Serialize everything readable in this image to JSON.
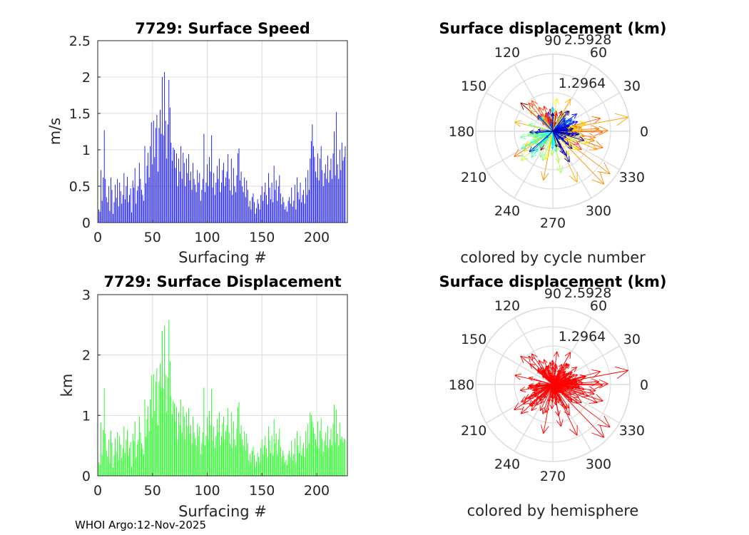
{
  "footer": "WHOI Argo:12-Nov-2025",
  "colors": {
    "speed_bar": "#0000ff",
    "displacement_bar": "#00ff00",
    "hemisphere_arrow": "#ff0000",
    "grid": "#dcdcdc",
    "axis": "#262626"
  },
  "chart_data": [
    {
      "type": "bar",
      "title": "7729: Surface Speed",
      "xlabel": "Surfacing #",
      "ylabel": "m/s",
      "xlim": [
        0,
        228
      ],
      "ylim": [
        0,
        2.5
      ],
      "xticks": [
        "0",
        "50",
        "100",
        "150",
        "200"
      ],
      "yticks": [
        "0",
        "0.5",
        "1",
        "1.5",
        "2",
        "2.5"
      ],
      "values": [
        0.18,
        0.15,
        0.72,
        0.3,
        0.62,
        1.27,
        0.6,
        0.35,
        0.28,
        0.5,
        0.16,
        0.62,
        0.45,
        0.12,
        0.28,
        0.52,
        0.34,
        0.6,
        0.22,
        0.55,
        0.43,
        0.26,
        0.38,
        0.68,
        0.32,
        0.5,
        0.63,
        0.28,
        0.38,
        0.47,
        0.14,
        0.58,
        0.48,
        0.75,
        0.26,
        0.44,
        0.5,
        0.82,
        0.6,
        0.45,
        0.38,
        0.3,
        1.05,
        0.54,
        0.78,
        0.96,
        0.62,
        1.05,
        1.38,
        0.8,
        1.4,
        0.9,
        1.3,
        1.48,
        0.7,
        1.3,
        1.55,
        1.22,
        2.0,
        1.2,
        2.07,
        1.4,
        0.88,
        1.35,
        1.96,
        1.58,
        1.1,
        0.85,
        1.03,
        1.0,
        0.75,
        0.95,
        0.5,
        0.88,
        0.7,
        1.05,
        0.6,
        0.96,
        0.82,
        0.5,
        0.88,
        0.68,
        0.94,
        0.58,
        0.7,
        0.45,
        0.82,
        0.6,
        0.52,
        0.42,
        0.72,
        0.55,
        0.68,
        0.3,
        0.45,
        0.6,
        1.22,
        0.42,
        0.55,
        0.8,
        0.5,
        0.9,
        0.7,
        1.2,
        0.48,
        0.68,
        0.38,
        0.55,
        0.78,
        0.6,
        0.88,
        0.42,
        0.55,
        0.72,
        0.82,
        0.5,
        0.62,
        0.7,
        0.94,
        0.6,
        0.44,
        0.88,
        0.38,
        0.75,
        0.5,
        0.42,
        0.65,
        0.95,
        1.02,
        0.58,
        0.7,
        0.5,
        0.42,
        0.62,
        0.35,
        0.58,
        0.45,
        0.22,
        0.3,
        0.18,
        0.35,
        0.4,
        0.28,
        0.12,
        0.2,
        0.32,
        0.26,
        0.18,
        0.38,
        0.5,
        0.3,
        0.42,
        0.55,
        0.38,
        0.25,
        0.68,
        0.48,
        0.32,
        0.55,
        0.28,
        0.78,
        0.45,
        0.58,
        0.3,
        0.5,
        0.65,
        0.4,
        0.25,
        0.35,
        0.28,
        0.18,
        0.22,
        0.15,
        0.3,
        0.35,
        0.26,
        0.48,
        0.22,
        0.3,
        0.52,
        0.18,
        0.62,
        0.42,
        0.32,
        0.55,
        0.28,
        0.38,
        0.45,
        0.26,
        0.62,
        0.38,
        0.72,
        0.45,
        0.88,
        1.12,
        1.35,
        1.05,
        0.9,
        0.7,
        0.62,
        0.95,
        0.58,
        0.88,
        1.05,
        0.72,
        0.5,
        0.68,
        0.8,
        0.6,
        0.92,
        0.55,
        0.72,
        0.88,
        0.6,
        0.95,
        1.25,
        0.65,
        1.52,
        0.8,
        0.6,
        1.0,
        0.72,
        1.1,
        0.85,
        0.9,
        1.05
      ]
    },
    {
      "type": "bar",
      "title": "7729: Surface Displacement",
      "xlabel": "Surfacing #",
      "ylabel": "km",
      "xlim": [
        0,
        228
      ],
      "ylim": [
        0,
        3
      ],
      "xticks": [
        "0",
        "50",
        "100",
        "150",
        "200"
      ],
      "yticks": [
        "0",
        "1",
        "2",
        "3"
      ],
      "values": [
        0.22,
        0.18,
        0.88,
        0.35,
        0.76,
        1.45,
        0.7,
        0.42,
        0.32,
        0.6,
        0.2,
        0.75,
        0.55,
        0.14,
        0.34,
        0.62,
        0.4,
        0.72,
        0.26,
        0.66,
        0.52,
        0.3,
        0.46,
        0.82,
        0.38,
        0.6,
        0.76,
        0.34,
        0.46,
        0.56,
        0.16,
        0.7,
        0.58,
        0.9,
        0.3,
        0.52,
        0.6,
        0.98,
        0.72,
        0.54,
        0.45,
        0.36,
        1.26,
        0.65,
        0.94,
        1.15,
        0.74,
        1.26,
        1.66,
        0.96,
        1.68,
        1.08,
        1.56,
        1.78,
        0.84,
        1.56,
        1.86,
        1.46,
        2.4,
        1.44,
        2.48,
        1.68,
        1.05,
        1.62,
        2.58,
        1.9,
        1.32,
        1.02,
        1.24,
        1.2,
        0.9,
        1.14,
        0.6,
        1.05,
        0.84,
        1.26,
        0.72,
        1.15,
        0.98,
        0.6,
        1.05,
        0.82,
        1.12,
        0.7,
        0.84,
        0.54,
        0.98,
        0.72,
        0.62,
        0.5,
        0.86,
        0.66,
        0.82,
        0.36,
        0.54,
        0.72,
        1.46,
        0.5,
        0.66,
        0.96,
        0.6,
        1.08,
        0.84,
        1.44,
        0.58,
        0.82,
        0.46,
        0.66,
        0.94,
        0.72,
        1.05,
        0.5,
        0.66,
        0.86,
        0.98,
        0.6,
        0.74,
        0.84,
        1.12,
        0.72,
        0.53,
        1.05,
        0.46,
        0.9,
        0.6,
        0.5,
        0.78,
        1.14,
        1.22,
        0.7,
        0.84,
        0.6,
        0.5,
        0.74,
        0.42,
        0.7,
        0.54,
        0.26,
        0.36,
        0.22,
        0.42,
        0.48,
        0.34,
        0.14,
        0.24,
        0.38,
        0.31,
        0.22,
        0.46,
        0.6,
        0.36,
        0.5,
        0.66,
        0.46,
        0.3,
        0.82,
        0.58,
        0.38,
        0.66,
        0.34,
        0.94,
        0.54,
        0.7,
        0.36,
        0.6,
        0.78,
        0.48,
        0.3,
        0.42,
        0.34,
        0.22,
        0.26,
        0.18,
        0.36,
        0.42,
        0.31,
        0.58,
        0.26,
        0.36,
        0.62,
        0.22,
        0.74,
        0.5,
        0.38,
        0.66,
        0.34,
        0.46,
        0.54,
        0.31,
        0.74,
        0.46,
        0.86,
        0.54,
        1.05,
        1.0,
        0.9,
        0.8,
        0.7,
        0.6,
        0.5,
        0.9,
        0.45,
        0.75,
        0.95,
        0.62,
        0.4,
        0.58,
        0.72,
        0.5,
        0.82,
        0.46,
        0.6,
        0.78,
        0.5,
        0.86,
        1.18,
        0.55,
        1.1,
        0.7,
        0.5,
        0.88,
        0.6,
        0.65,
        0.55,
        0.62,
        0.6
      ]
    },
    {
      "type": "polar",
      "title": "Surface displacement (km)",
      "caption": "colored by cycle number",
      "rticks": [
        "1.2964",
        "2.5928"
      ],
      "rmax": 2.5928,
      "theta_labels": [
        "0",
        "30",
        "60",
        "90",
        "120",
        "150",
        "180",
        "210",
        "240",
        "270",
        "300",
        "330"
      ],
      "color_mode": "cycle"
    },
    {
      "type": "polar",
      "title": "Surface displacement (km)",
      "caption": "colored by hemisphere",
      "rticks": [
        "1.2964",
        "2.5928"
      ],
      "rmax": 2.5928,
      "theta_labels": [
        "0",
        "30",
        "60",
        "90",
        "120",
        "150",
        "180",
        "210",
        "240",
        "270",
        "300",
        "330"
      ],
      "color_mode": "hemisphere"
    }
  ]
}
